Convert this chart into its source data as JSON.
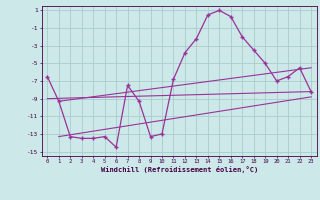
{
  "xlabel": "Windchill (Refroidissement éolien,°C)",
  "bg_color": "#cce8e8",
  "grid_color": "#aacccc",
  "line_color": "#993399",
  "spine_color": "#440044",
  "xlim": [
    -0.5,
    23.5
  ],
  "ylim": [
    -15.5,
    1.5
  ],
  "yticks": [
    1,
    -1,
    -3,
    -5,
    -7,
    -9,
    -11,
    -13,
    -15
  ],
  "xticks": [
    0,
    1,
    2,
    3,
    4,
    5,
    6,
    7,
    8,
    9,
    10,
    11,
    12,
    13,
    14,
    15,
    16,
    17,
    18,
    19,
    20,
    21,
    22,
    23
  ],
  "main_line_x": [
    0,
    1,
    2,
    3,
    4,
    5,
    6,
    7,
    8,
    9,
    10,
    11,
    12,
    13,
    14,
    15,
    16,
    17,
    18,
    19,
    20,
    21,
    22,
    23
  ],
  "main_line_y": [
    -6.5,
    -9.3,
    -13.3,
    -13.5,
    -13.5,
    -13.3,
    -14.5,
    -7.5,
    -9.3,
    -13.3,
    -13.0,
    -6.8,
    -3.8,
    -2.2,
    0.5,
    1.0,
    0.3,
    -2.0,
    -3.5,
    -5.0,
    -7.0,
    -6.5,
    -5.5,
    -8.2
  ],
  "trend_line1_x": [
    0,
    23
  ],
  "trend_line1_y": [
    -9.0,
    -8.2
  ],
  "trend_line2_x": [
    1,
    23
  ],
  "trend_line2_y": [
    -9.3,
    -5.5
  ],
  "trend_line3_x": [
    1,
    23
  ],
  "trend_line3_y": [
    -13.3,
    -8.8
  ]
}
